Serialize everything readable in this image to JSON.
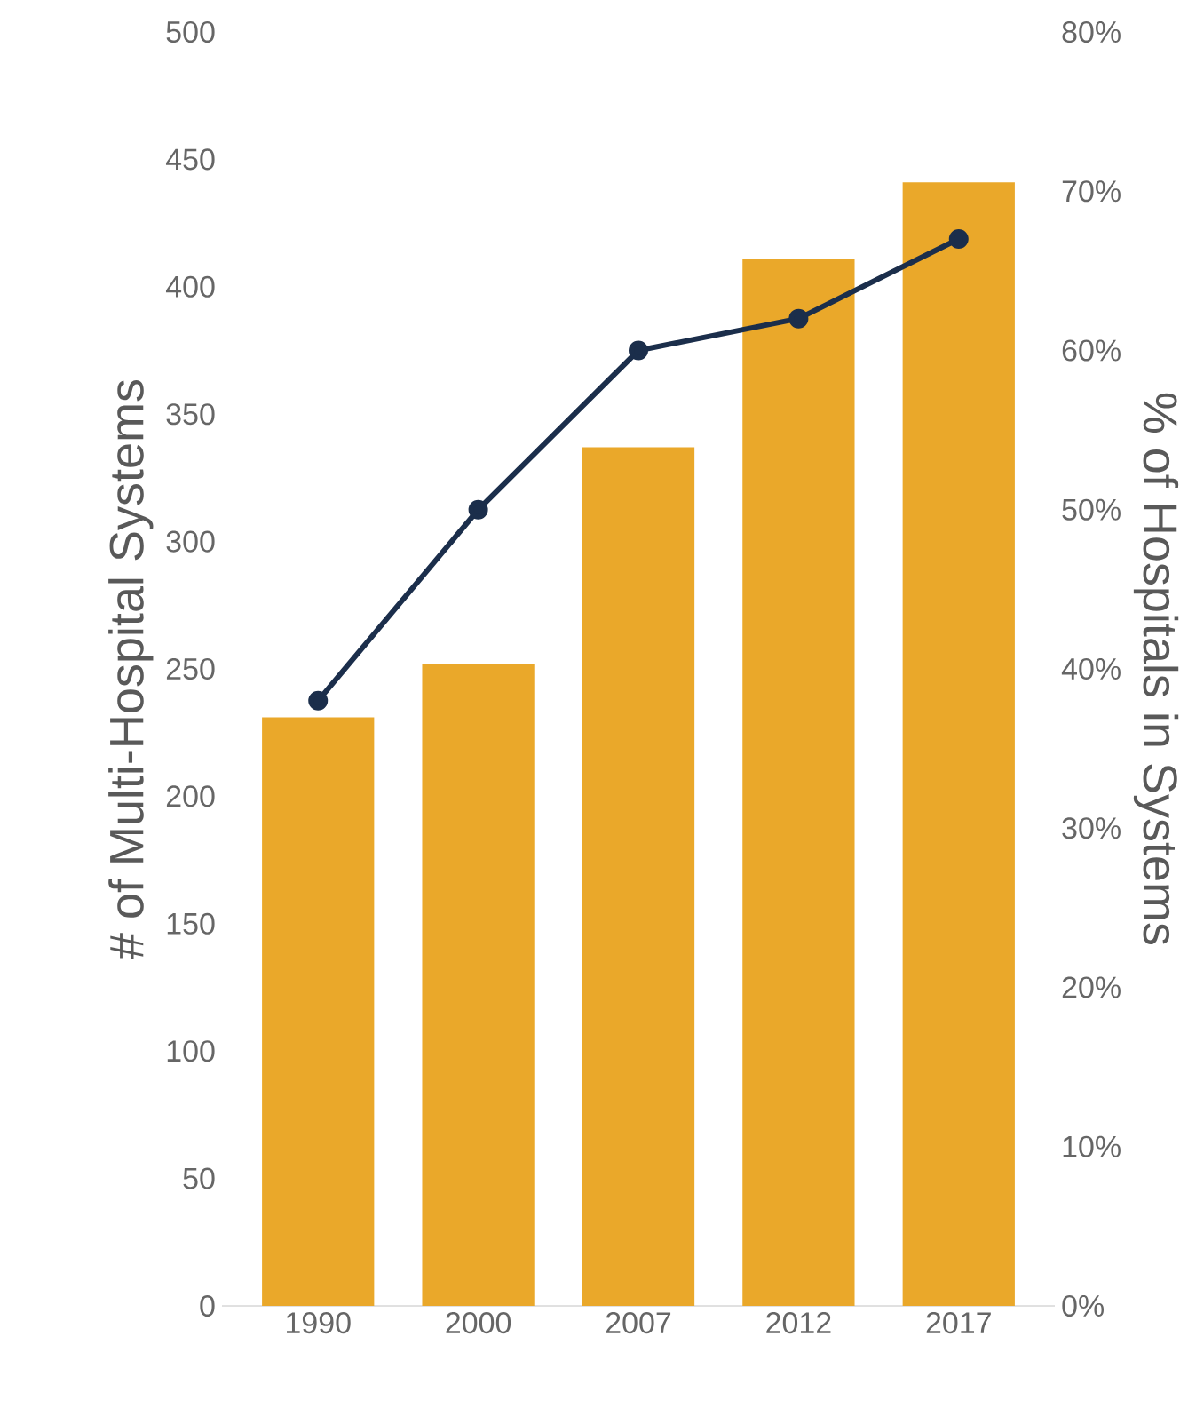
{
  "chart_data": {
    "type": "bar",
    "categories": [
      "1990",
      "2000",
      "2007",
      "2012",
      "2017"
    ],
    "ylabel": "# of Multi-Hospital Systems",
    "y2label": "% of Hospitals in Systems",
    "ylim": [
      0,
      500
    ],
    "yticks": [
      0,
      50,
      100,
      150,
      200,
      250,
      300,
      350,
      400,
      450,
      500
    ],
    "y2lim": [
      0,
      80
    ],
    "y2ticks": [
      {
        "value": 0,
        "label": "0%"
      },
      {
        "value": 10,
        "label": "10%"
      },
      {
        "value": 20,
        "label": "20%"
      },
      {
        "value": 30,
        "label": "30%"
      },
      {
        "value": 40,
        "label": "40%"
      },
      {
        "value": 50,
        "label": "50%"
      },
      {
        "value": 60,
        "label": "60%"
      },
      {
        "value": 70,
        "label": "70%"
      },
      {
        "value": 80,
        "label": "80%"
      }
    ],
    "series": [
      {
        "color": "#eaa82a",
        "values": [
          231,
          252,
          337,
          411,
          441
        ]
      },
      {
        "type": "line",
        "axis": "y2",
        "color": "#1b2e4b",
        "marker": "circle",
        "values": [
          38,
          50,
          60,
          62,
          67
        ]
      }
    ],
    "grid": false
  }
}
